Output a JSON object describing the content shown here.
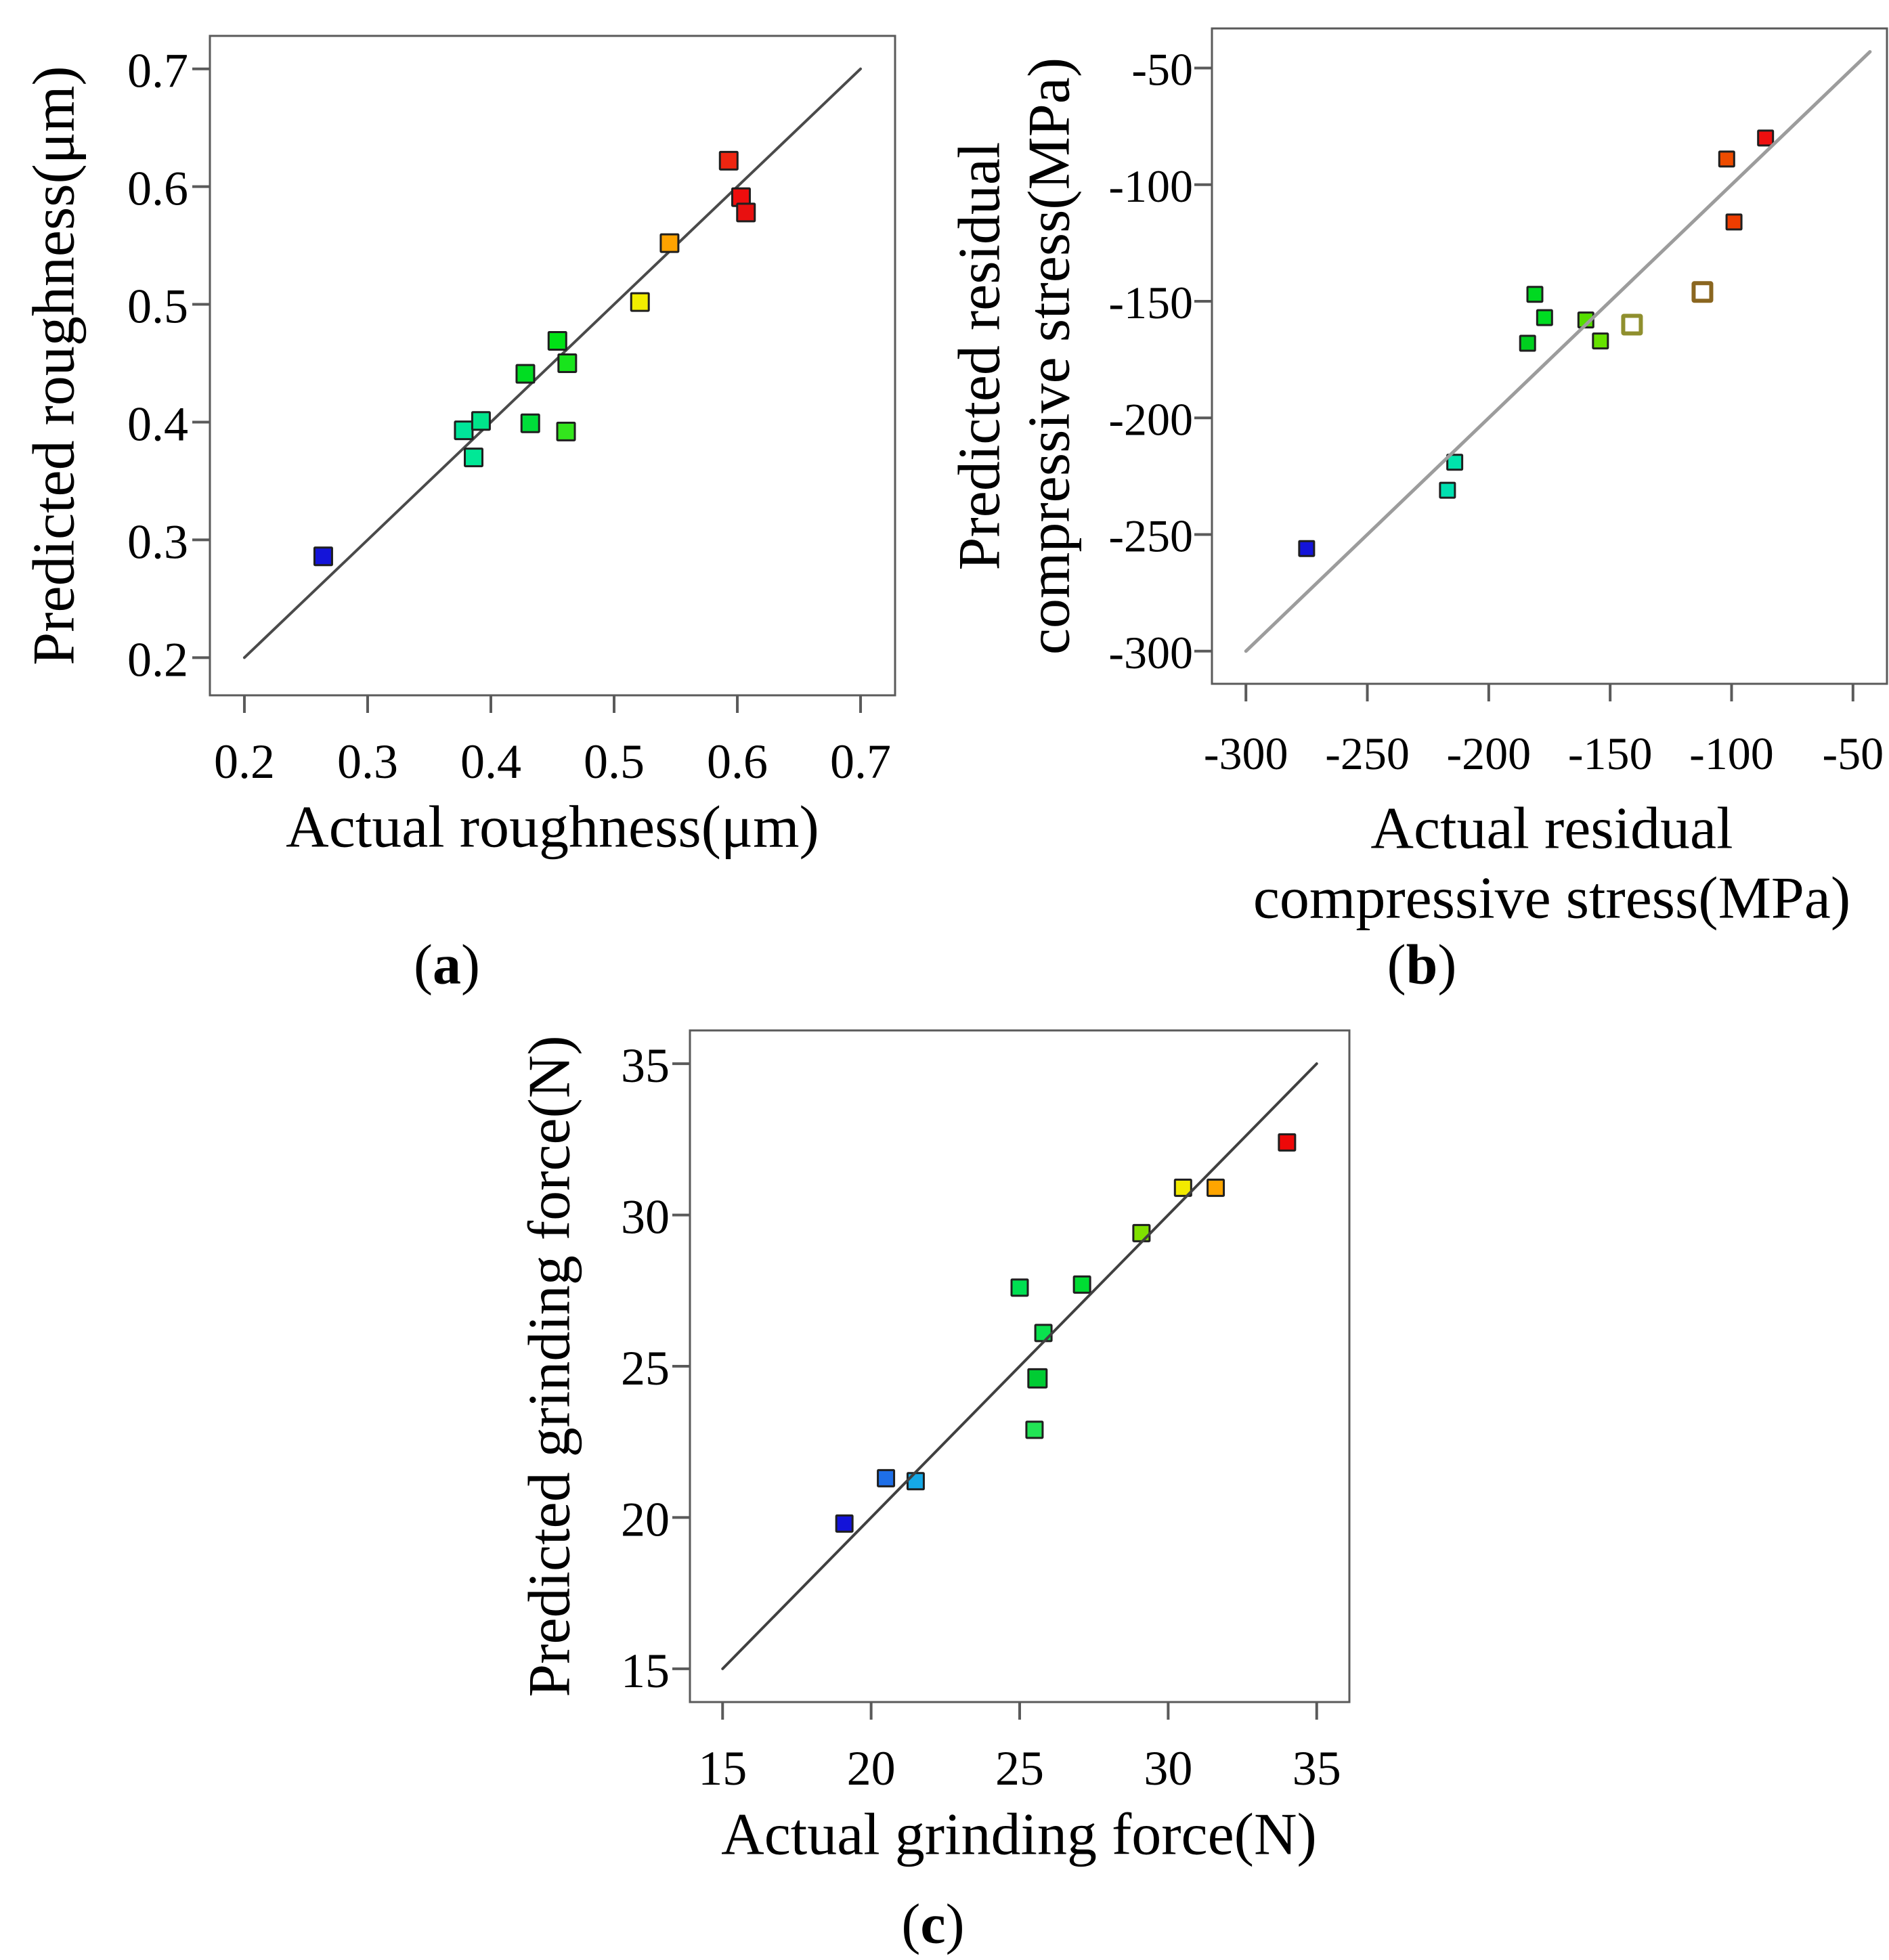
{
  "figure": {
    "background": "#ffffff",
    "frame_color": "#5a5a5a",
    "tick_color": "#5a5a5a",
    "marker_outline": "#1f1f1f"
  },
  "chart_data": [
    {
      "id": "a",
      "type": "scatter",
      "caption": {
        "open": "(",
        "letter": "a",
        "close": ")"
      },
      "xlabel_lines": [
        "Actual roughness(μm)"
      ],
      "ylabel_lines": [
        "Predicted roughness(μm)"
      ],
      "xlim": [
        0.172,
        0.728
      ],
      "ylim": [
        0.168,
        0.728
      ],
      "xticks": [
        0.2,
        0.3,
        0.4,
        0.5,
        0.6,
        0.7
      ],
      "xtick_labels": [
        "0.2",
        "0.3",
        "0.4",
        "0.5",
        "0.6",
        "0.7"
      ],
      "yticks": [
        0.2,
        0.3,
        0.4,
        0.5,
        0.6,
        0.7
      ],
      "ytick_labels": [
        "0.2",
        "0.3",
        "0.4",
        "0.5",
        "0.6",
        "0.7"
      ],
      "grid": false,
      "legend": null,
      "identity_line": {
        "from": 0.2,
        "to": 0.7,
        "color": "#4a4a4a",
        "width": 4,
        "over_points": false
      },
      "marker": {
        "shape": "square",
        "size": 26,
        "stroke_width": 3
      },
      "points": [
        {
          "x": 0.264,
          "y": 0.286,
          "color": "#1414d9"
        },
        {
          "x": 0.378,
          "y": 0.393,
          "color": "#00e59a"
        },
        {
          "x": 0.392,
          "y": 0.401,
          "color": "#00e48b"
        },
        {
          "x": 0.386,
          "y": 0.37,
          "color": "#00e896"
        },
        {
          "x": 0.428,
          "y": 0.441,
          "color": "#00dd22"
        },
        {
          "x": 0.432,
          "y": 0.399,
          "color": "#00de3a"
        },
        {
          "x": 0.454,
          "y": 0.469,
          "color": "#00e116"
        },
        {
          "x": 0.462,
          "y": 0.45,
          "color": "#18e41c"
        },
        {
          "x": 0.461,
          "y": 0.392,
          "color": "#33e51d"
        },
        {
          "x": 0.521,
          "y": 0.502,
          "color": "#f2ee00"
        },
        {
          "x": 0.545,
          "y": 0.552,
          "color": "#ffa300"
        },
        {
          "x": 0.593,
          "y": 0.622,
          "color": "#ee2611"
        },
        {
          "x": 0.603,
          "y": 0.591,
          "color": "#ee0d0d"
        },
        {
          "x": 0.607,
          "y": 0.578,
          "color": "#e81010"
        }
      ]
    },
    {
      "id": "b",
      "type": "scatter",
      "caption": {
        "open": "(",
        "letter": "b",
        "close": ")"
      },
      "xlabel_lines": [
        "Actual residual",
        "compressive stress(MPa)"
      ],
      "ylabel_lines": [
        "Predicted residual",
        "compressive stress(MPa)"
      ],
      "xlim": [
        -314,
        -36
      ],
      "ylim": [
        -314,
        -33
      ],
      "xticks": [
        -300,
        -250,
        -200,
        -150,
        -100,
        -50
      ],
      "xtick_labels": [
        "-300",
        "-250",
        "-200",
        "-150",
        "-100",
        "-50"
      ],
      "yticks": [
        -300,
        -250,
        -200,
        -150,
        -100,
        -50
      ],
      "ytick_labels": [
        "-300",
        "-250",
        "-200",
        "-150",
        "-100",
        "-50"
      ],
      "grid": false,
      "legend": null,
      "identity_line": {
        "from": -300,
        "to": -43,
        "color": "#9c9c9c",
        "width": 5,
        "over_points": true
      },
      "marker": {
        "shape": "square",
        "size": 22,
        "stroke_width": 3
      },
      "points": [
        {
          "x": -275,
          "y": -256,
          "color": "#1414d9"
        },
        {
          "x": -214,
          "y": -219,
          "color": "#00e4ac"
        },
        {
          "x": -217,
          "y": -231,
          "color": "#00e0b0"
        },
        {
          "x": -181,
          "y": -147,
          "color": "#00d921"
        },
        {
          "x": -177,
          "y": -157,
          "color": "#00dd22"
        },
        {
          "x": -184,
          "y": -168,
          "color": "#00cf1f"
        },
        {
          "x": -160,
          "y": -158,
          "color": "#55dd00"
        },
        {
          "x": -154,
          "y": -167,
          "color": "#66e200"
        },
        {
          "x": -141,
          "y": -160,
          "color": "#8f8f2e",
          "open": true,
          "size": 26
        },
        {
          "x": -112,
          "y": -146,
          "color": "#8a6620",
          "open": true,
          "size": 26
        },
        {
          "x": -102,
          "y": -89,
          "color": "#ee4c00"
        },
        {
          "x": -99,
          "y": -116,
          "color": "#ee3d00"
        },
        {
          "x": -86,
          "y": -80,
          "color": "#ee0f0f"
        }
      ]
    },
    {
      "id": "c",
      "type": "scatter",
      "caption": {
        "open": "(",
        "letter": "c",
        "close": ")"
      },
      "xlabel_lines": [
        "Actual grinding force(N)"
      ],
      "ylabel_lines": [
        "Predicted grinding force(N)"
      ],
      "xlim": [
        13.9,
        36.1
      ],
      "ylim": [
        13.9,
        36.1
      ],
      "xticks": [
        15,
        20,
        25,
        30,
        35
      ],
      "xtick_labels": [
        "15",
        "20",
        "25",
        "30",
        "35"
      ],
      "yticks": [
        15,
        20,
        25,
        30,
        35
      ],
      "ytick_labels": [
        "15",
        "20",
        "25",
        "30",
        "35"
      ],
      "grid": false,
      "legend": null,
      "identity_line": {
        "from": 15,
        "to": 35,
        "color": "#404040",
        "width": 4,
        "over_points": true
      },
      "marker": {
        "shape": "square",
        "size": 24,
        "stroke_width": 3
      },
      "points": [
        {
          "x": 19.1,
          "y": 19.8,
          "color": "#1313d9"
        },
        {
          "x": 20.5,
          "y": 21.3,
          "color": "#1e6fe8"
        },
        {
          "x": 21.5,
          "y": 21.2,
          "color": "#15a8e6"
        },
        {
          "x": 25.0,
          "y": 27.6,
          "color": "#00e052"
        },
        {
          "x": 27.1,
          "y": 27.7,
          "color": "#00dd33"
        },
        {
          "x": 25.8,
          "y": 26.1,
          "color": "#0ae24e"
        },
        {
          "x": 25.6,
          "y": 24.6,
          "color": "#00cc33",
          "size": 27
        },
        {
          "x": 25.5,
          "y": 22.9,
          "color": "#22e455"
        },
        {
          "x": 29.1,
          "y": 29.4,
          "color": "#7fe000"
        },
        {
          "x": 30.5,
          "y": 30.9,
          "color": "#f2ea00"
        },
        {
          "x": 31.6,
          "y": 30.9,
          "color": "#ffa500"
        },
        {
          "x": 34.0,
          "y": 32.4,
          "color": "#ee0808"
        }
      ]
    }
  ]
}
